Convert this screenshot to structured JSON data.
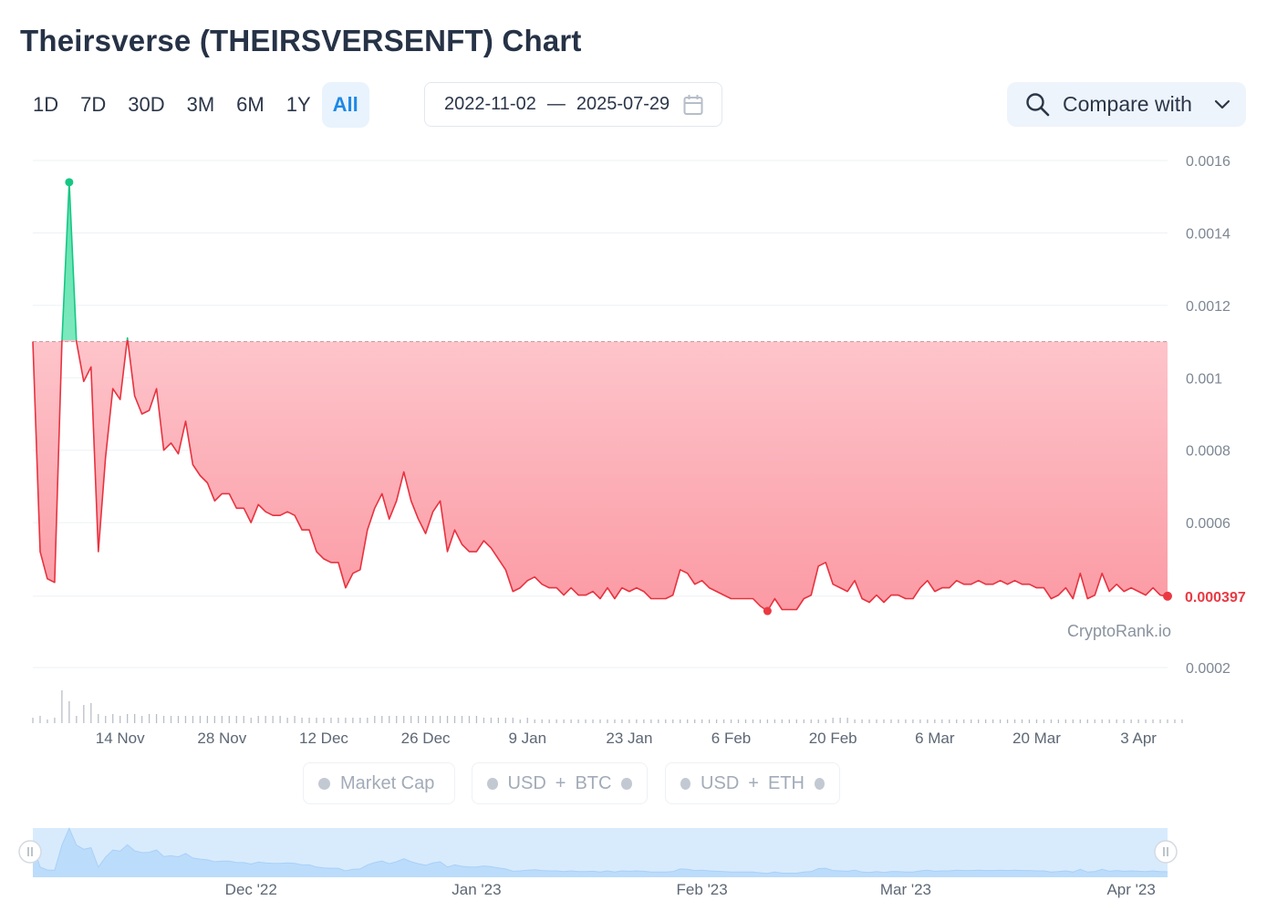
{
  "title": "Theirsverse (THEIRSVERSENFT) Chart",
  "ranges": [
    "1D",
    "7D",
    "30D",
    "3M",
    "6M",
    "1Y",
    "All"
  ],
  "active_range": "All",
  "date_range": {
    "from": "2022-11-02",
    "separator": "—",
    "to": "2025-07-29"
  },
  "compare": {
    "label": "Compare with"
  },
  "watermark": "CryptoRank.io",
  "legend": {
    "market_cap": "Market Cap",
    "usd_btc": {
      "a": "USD",
      "plus": "+",
      "b": "BTC"
    },
    "usd_eth": {
      "a": "USD",
      "plus": "+",
      "b": "ETH"
    }
  },
  "colors": {
    "up": "#16c784",
    "down": "#ea3943",
    "active": "#1e88e5",
    "navigator": "#d8ebfd"
  },
  "chart_data": {
    "type": "area",
    "x_start": "2022-11-02",
    "reference_value": 0.0011,
    "current_value_label": "0.000397",
    "min_value": 0.000356,
    "max_value": 0.00154,
    "y_ticks": [
      {
        "value": 0.0002,
        "label": "0.0002"
      },
      {
        "value": 0.0006,
        "label": "0.0006"
      },
      {
        "value": 0.0008,
        "label": "0.0008"
      },
      {
        "value": 0.001,
        "label": "0.001"
      },
      {
        "value": 0.0012,
        "label": "0.0012"
      },
      {
        "value": 0.0014,
        "label": "0.0014"
      },
      {
        "value": 0.0016,
        "label": "0.0016"
      }
    ],
    "ylim": [
      0.00018,
      0.0016
    ],
    "x_ticks": [
      {
        "day": 12,
        "label": "14 Nov"
      },
      {
        "day": 26,
        "label": "28 Nov"
      },
      {
        "day": 40,
        "label": "12 Dec"
      },
      {
        "day": 54,
        "label": "26 Dec"
      },
      {
        "day": 68,
        "label": "9 Jan"
      },
      {
        "day": 82,
        "label": "23 Jan"
      },
      {
        "day": 96,
        "label": "6 Feb"
      },
      {
        "day": 110,
        "label": "20 Feb"
      },
      {
        "day": 124,
        "label": "6 Mar"
      },
      {
        "day": 138,
        "label": "20 Mar"
      },
      {
        "day": 152,
        "label": "3 Apr"
      }
    ],
    "navigator_ticks": [
      {
        "day": 30,
        "label": "Dec '22"
      },
      {
        "day": 61,
        "label": "Jan '23"
      },
      {
        "day": 92,
        "label": "Feb '23"
      },
      {
        "day": 120,
        "label": "Mar '23"
      },
      {
        "day": 151,
        "label": "Apr '23"
      }
    ],
    "price": [
      0.0011,
      0.00052,
      0.000445,
      0.000435,
      0.0011,
      0.00154,
      0.0011,
      0.00099,
      0.00103,
      0.00052,
      0.00078,
      0.00097,
      0.00094,
      0.00111,
      0.00095,
      0.0009,
      0.00091,
      0.00097,
      0.0008,
      0.00082,
      0.00079,
      0.00088,
      0.00076,
      0.00073,
      0.00071,
      0.00066,
      0.00068,
      0.00068,
      0.00064,
      0.00064,
      0.0006,
      0.00065,
      0.00063,
      0.00062,
      0.00062,
      0.00063,
      0.00062,
      0.00058,
      0.00058,
      0.00052,
      0.0005,
      0.00049,
      0.00049,
      0.00042,
      0.00046,
      0.00047,
      0.00058,
      0.00064,
      0.00068,
      0.00061,
      0.00066,
      0.00074,
      0.00066,
      0.00061,
      0.00057,
      0.00063,
      0.00066,
      0.00052,
      0.00058,
      0.00054,
      0.00052,
      0.00052,
      0.00055,
      0.00053,
      0.0005,
      0.00047,
      0.00041,
      0.00042,
      0.00044,
      0.00045,
      0.00043,
      0.00042,
      0.00042,
      0.0004,
      0.00042,
      0.0004,
      0.0004,
      0.00041,
      0.00039,
      0.00042,
      0.00039,
      0.00042,
      0.00041,
      0.00042,
      0.00041,
      0.00039,
      0.00039,
      0.00039,
      0.0004,
      0.00047,
      0.00046,
      0.00043,
      0.00044,
      0.00042,
      0.00041,
      0.0004,
      0.00039,
      0.00039,
      0.00039,
      0.00039,
      0.00037,
      0.000356,
      0.00039,
      0.00036,
      0.00036,
      0.00036,
      0.00039,
      0.0004,
      0.00048,
      0.00049,
      0.00043,
      0.00042,
      0.00041,
      0.00044,
      0.00039,
      0.00038,
      0.0004,
      0.00038,
      0.0004,
      0.0004,
      0.00039,
      0.00039,
      0.00042,
      0.00044,
      0.00041,
      0.00042,
      0.00042,
      0.00044,
      0.00043,
      0.00043,
      0.00044,
      0.00043,
      0.00043,
      0.00044,
      0.00043,
      0.00044,
      0.00043,
      0.00043,
      0.00042,
      0.00042,
      0.00039,
      0.0004,
      0.00042,
      0.00039,
      0.00046,
      0.00039,
      0.0004,
      0.00046,
      0.00041,
      0.00043,
      0.00041,
      0.00042,
      0.00041,
      0.0004,
      0.00042,
      0.0004,
      0.000397
    ],
    "volume": [
      3,
      4,
      2,
      3,
      18,
      12,
      4,
      10,
      11,
      5,
      4,
      5,
      4,
      5,
      5,
      4,
      5,
      5,
      4,
      4,
      4,
      4,
      4,
      4,
      4,
      4,
      4,
      4,
      4,
      4,
      3,
      4,
      4,
      4,
      4,
      3,
      4,
      3,
      3,
      3,
      3,
      3,
      3,
      3,
      3,
      3,
      3,
      4,
      4,
      4,
      4,
      4,
      4,
      4,
      4,
      4,
      4,
      4,
      4,
      4,
      4,
      4,
      3,
      3,
      3,
      3,
      3,
      2,
      3,
      2,
      2,
      2,
      2,
      2,
      2,
      2,
      2,
      2,
      2,
      2,
      2,
      2,
      2,
      2,
      2,
      2,
      2,
      2,
      2,
      2,
      2,
      2,
      2,
      2,
      2,
      2,
      2,
      2,
      2,
      2,
      2,
      2,
      2,
      2,
      2,
      2,
      2,
      2,
      2,
      2,
      3,
      3,
      3,
      2,
      2,
      2,
      2,
      2,
      2,
      2,
      2,
      2,
      2,
      2,
      2,
      2,
      2,
      2,
      2,
      2,
      2,
      2,
      2,
      2,
      2,
      2,
      2,
      2,
      2,
      2,
      2,
      2,
      2,
      2,
      2,
      2,
      2,
      2,
      2,
      2,
      2,
      2,
      2,
      2,
      2,
      2,
      2,
      2,
      2
    ]
  }
}
